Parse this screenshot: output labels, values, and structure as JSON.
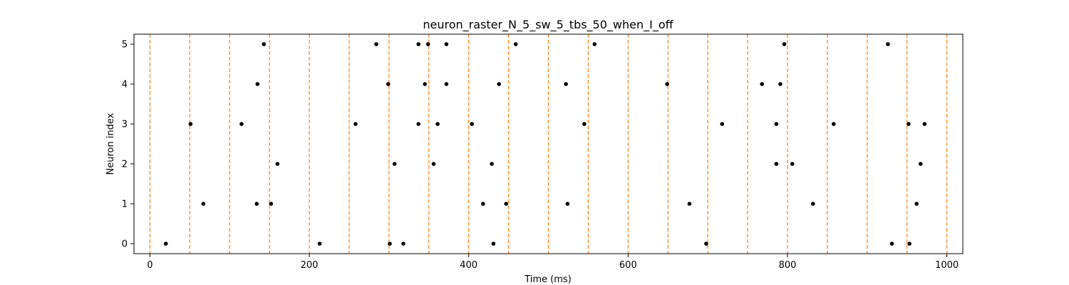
{
  "chart_data": {
    "type": "scatter",
    "title": "neuron_raster_N_5_sw_5_tbs_50_when_I_off",
    "xlabel": "Time (ms)",
    "ylabel": "Neuron index",
    "xlim": [
      -20,
      1020
    ],
    "ylim": [
      -0.25,
      5.25
    ],
    "xticks": [
      0,
      200,
      400,
      600,
      800,
      1000
    ],
    "yticks": [
      0,
      1,
      2,
      3,
      4,
      5
    ],
    "grid": false,
    "colors": {
      "spikes": "#000000",
      "boundaries": "#ff7f0e"
    },
    "boundaries": [
      0,
      50,
      100,
      150,
      200,
      250,
      300,
      350,
      400,
      450,
      500,
      550,
      600,
      650,
      700,
      750,
      800,
      850,
      900,
      950,
      1000
    ],
    "spikes": [
      {
        "neuron": 0,
        "times": [
          20,
          213,
          301,
          318,
          431,
          698,
          931,
          953
        ]
      },
      {
        "neuron": 1,
        "times": [
          67,
          134,
          152,
          418,
          447,
          524,
          677,
          832,
          962
        ]
      },
      {
        "neuron": 2,
        "times": [
          160,
          307,
          356,
          429,
          786,
          806,
          967
        ]
      },
      {
        "neuron": 3,
        "times": [
          51,
          115,
          258,
          337,
          361,
          404,
          545,
          718,
          786,
          858,
          952,
          972
        ]
      },
      {
        "neuron": 4,
        "times": [
          135,
          299,
          345,
          372,
          438,
          522,
          649,
          768,
          791
        ]
      },
      {
        "neuron": 5,
        "times": [
          143,
          284,
          337,
          349,
          372,
          459,
          558,
          796,
          926
        ]
      }
    ]
  }
}
